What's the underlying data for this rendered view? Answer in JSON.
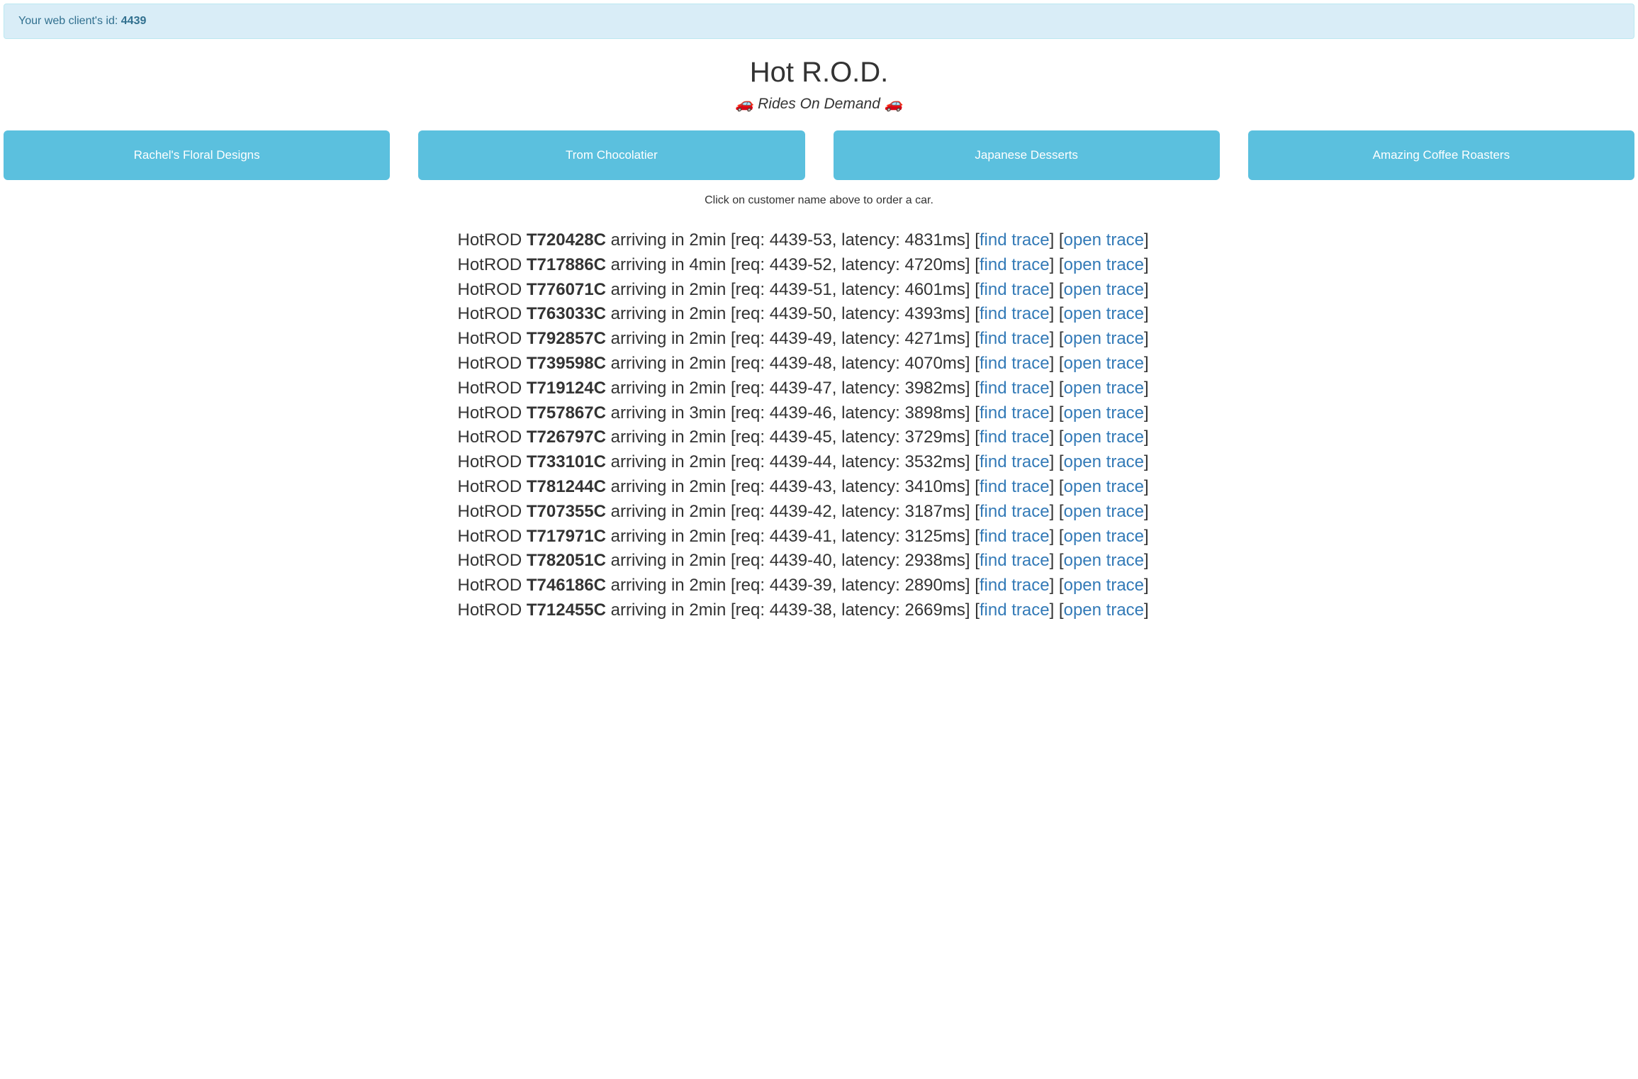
{
  "banner": {
    "prefix": "Your web client's id: ",
    "client_id": "4439"
  },
  "title": "Hot R.O.D.",
  "subtitle": "🚗 Rides On Demand 🚗",
  "customers": [
    "Rachel's Floral Designs",
    "Trom Chocolatier",
    "Japanese Desserts",
    "Amazing Coffee Roasters"
  ],
  "instruction": "Click on customer name above to order a car.",
  "colors": {
    "banner_bg": "#d9edf7",
    "banner_border": "#bce8f1",
    "banner_text": "#31708f",
    "button_bg": "#5bc0de",
    "button_text": "#ffffff",
    "link_color": "#337ab7",
    "body_text": "#333333",
    "background": "#ffffff"
  },
  "labels": {
    "hotrod_prefix": "HotROD ",
    "arriving_prefix": " arriving in ",
    "req_prefix": " [req: ",
    "latency_prefix": ", latency: ",
    "bracket_close": "] [",
    "find_trace": "find trace",
    "mid_bracket": "] [",
    "open_trace": "open trace",
    "end_bracket": "]"
  },
  "results": [
    {
      "driver": "T720428C",
      "eta": "2min",
      "req": "4439-53",
      "latency": "4831ms"
    },
    {
      "driver": "T717886C",
      "eta": "4min",
      "req": "4439-52",
      "latency": "4720ms"
    },
    {
      "driver": "T776071C",
      "eta": "2min",
      "req": "4439-51",
      "latency": "4601ms"
    },
    {
      "driver": "T763033C",
      "eta": "2min",
      "req": "4439-50",
      "latency": "4393ms"
    },
    {
      "driver": "T792857C",
      "eta": "2min",
      "req": "4439-49",
      "latency": "4271ms"
    },
    {
      "driver": "T739598C",
      "eta": "2min",
      "req": "4439-48",
      "latency": "4070ms"
    },
    {
      "driver": "T719124C",
      "eta": "2min",
      "req": "4439-47",
      "latency": "3982ms"
    },
    {
      "driver": "T757867C",
      "eta": "3min",
      "req": "4439-46",
      "latency": "3898ms"
    },
    {
      "driver": "T726797C",
      "eta": "2min",
      "req": "4439-45",
      "latency": "3729ms"
    },
    {
      "driver": "T733101C",
      "eta": "2min",
      "req": "4439-44",
      "latency": "3532ms"
    },
    {
      "driver": "T781244C",
      "eta": "2min",
      "req": "4439-43",
      "latency": "3410ms"
    },
    {
      "driver": "T707355C",
      "eta": "2min",
      "req": "4439-42",
      "latency": "3187ms"
    },
    {
      "driver": "T717971C",
      "eta": "2min",
      "req": "4439-41",
      "latency": "3125ms"
    },
    {
      "driver": "T782051C",
      "eta": "2min",
      "req": "4439-40",
      "latency": "2938ms"
    },
    {
      "driver": "T746186C",
      "eta": "2min",
      "req": "4439-39",
      "latency": "2890ms"
    },
    {
      "driver": "T712455C",
      "eta": "2min",
      "req": "4439-38",
      "latency": "2669ms"
    }
  ]
}
